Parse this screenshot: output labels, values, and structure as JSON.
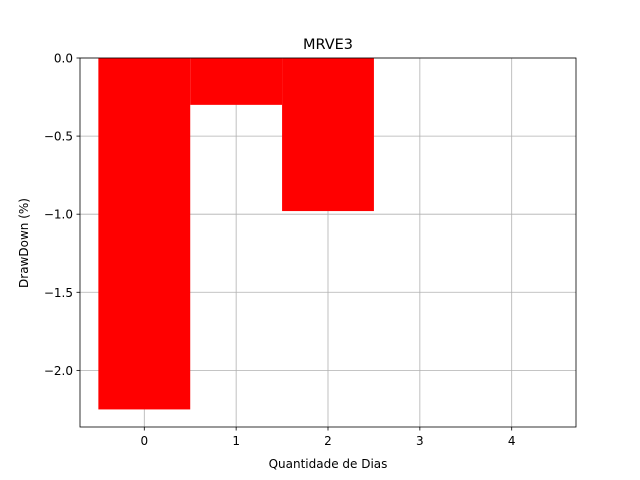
{
  "chart_data": {
    "type": "bar",
    "title": "MRVE3",
    "xlabel": "Quantidade de Dias",
    "ylabel": "DrawDown (%)",
    "x": [
      0,
      1,
      2,
      3,
      4
    ],
    "values": [
      -2.25,
      -0.3,
      -0.98,
      0.0,
      0.0
    ],
    "xticks": [
      "0",
      "1",
      "2",
      "3",
      "4"
    ],
    "yticks": [
      0.0,
      -0.5,
      -1.0,
      -1.5,
      -2.0
    ],
    "ytick_labels": [
      "0.0",
      "−0.5",
      "−1.0",
      "−1.5",
      "−2.0"
    ],
    "xlim": [
      -0.7,
      4.7
    ],
    "ylim": [
      -2.3625,
      0.0
    ],
    "bar_color": "#ff0000",
    "grid": true
  }
}
